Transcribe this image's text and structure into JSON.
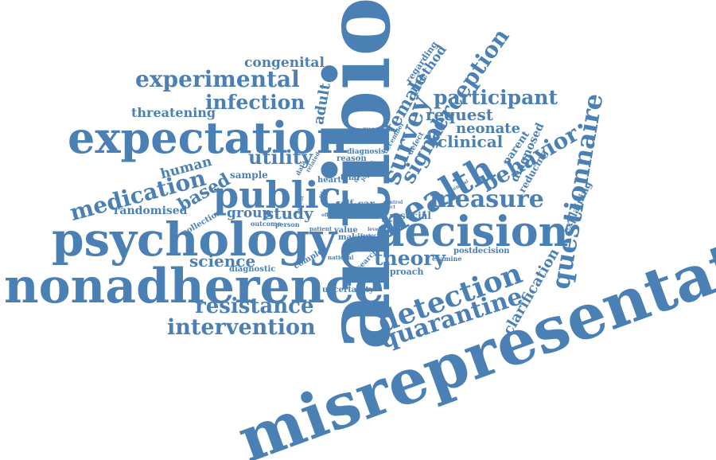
{
  "accent_color": "#4a80b4",
  "words": [
    "antibiotic",
    "misrepresentation",
    "nonadherence",
    "psychology",
    "expectation",
    "decision",
    "public",
    "health",
    "questionnaire",
    "detection",
    "quarantine",
    "experimental",
    "survey",
    "perception",
    "participant",
    "behavior",
    "measure",
    "medication",
    "intervention",
    "resistance",
    "infection",
    "theory",
    "utility",
    "science",
    "congenital",
    "clinical",
    "request",
    "neonate",
    "signal",
    "female",
    "clarification",
    "threatening",
    "based",
    "human",
    "randomised",
    "group",
    "study",
    "adult",
    "method",
    "regarding",
    "diagnosed",
    "parent",
    "reducing",
    "explaining",
    "sample",
    "diagnosis",
    "question",
    "december",
    "defect",
    "trial",
    "heart",
    "reason",
    "related",
    "data",
    "self",
    "value",
    "making",
    "outcome",
    "person",
    "patient",
    "complex",
    "diagnostic",
    "national",
    "research",
    "approach",
    "uncertainty",
    "examine",
    "postdecision",
    "control",
    "social",
    "impact",
    "general",
    "year",
    "collection",
    "life",
    "benefit",
    "offer",
    "factor",
    "ratio",
    "result",
    "tool",
    "view",
    "sar",
    "job",
    "level"
  ]
}
